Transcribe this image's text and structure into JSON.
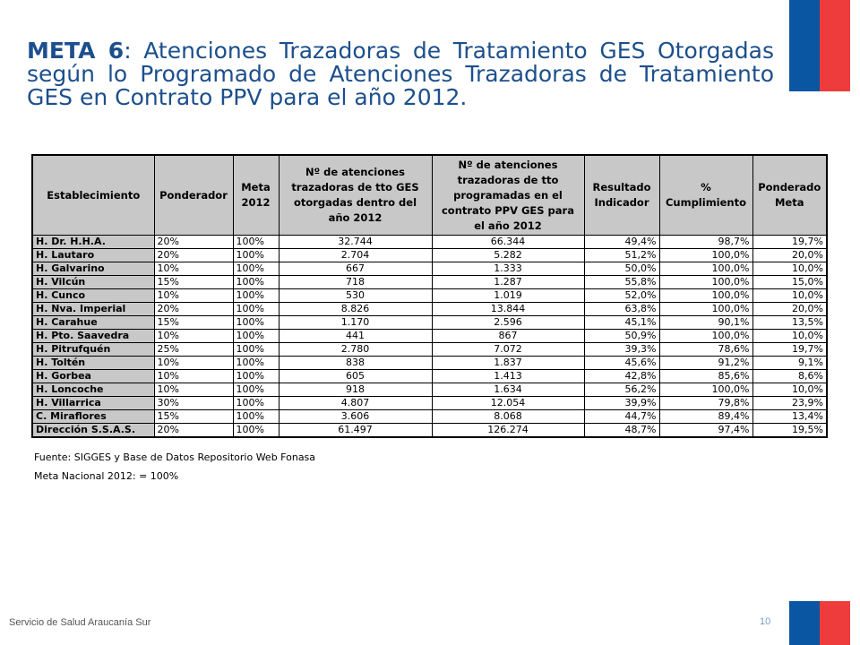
{
  "slide": {
    "title_bold": "META 6",
    "title_rest": ":  Atenciones Trazadoras de Tratamiento GES Otorgadas según lo Programado de Atenciones Trazadoras de Tratamiento GES en Contrato PPV para el año 2012.",
    "footer_org": "Servicio de Salud Araucanía Sur",
    "page_number": "10",
    "colors": {
      "title": "#1c4f8c",
      "flag_blue": "#0b56a3",
      "flag_red": "#ee3c3c",
      "header_bg": "#c8c8c8"
    }
  },
  "table": {
    "headers": [
      "Establecimiento",
      "Ponderador",
      "Meta 2012",
      "Nº de atenciones trazadoras de tto GES otorgadas dentro del año 2012",
      "Nº de atenciones trazadoras de tto programadas en el contrato PPV GES para el año 2012",
      "Resultado Indicador",
      "% Cumplimiento",
      "Ponderado Meta"
    ],
    "rows": [
      [
        "H. Dr. H.H.A.",
        "20%",
        "100%",
        "32.744",
        "66.344",
        "49,4%",
        "98,7%",
        "19,7%"
      ],
      [
        "H. Lautaro",
        "20%",
        "100%",
        "2.704",
        "5.282",
        "51,2%",
        "100,0%",
        "20,0%"
      ],
      [
        "H. Galvarino",
        "10%",
        "100%",
        "667",
        "1.333",
        "50,0%",
        "100,0%",
        "10,0%"
      ],
      [
        "H. Vilcún",
        "15%",
        "100%",
        "718",
        "1.287",
        "55,8%",
        "100,0%",
        "15,0%"
      ],
      [
        "H. Cunco",
        "10%",
        "100%",
        "530",
        "1.019",
        "52,0%",
        "100,0%",
        "10,0%"
      ],
      [
        "H. Nva. Imperial",
        "20%",
        "100%",
        "8.826",
        "13.844",
        "63,8%",
        "100,0%",
        "20,0%"
      ],
      [
        "H. Carahue",
        "15%",
        "100%",
        "1.170",
        "2.596",
        "45,1%",
        "90,1%",
        "13,5%"
      ],
      [
        "H. Pto. Saavedra",
        "10%",
        "100%",
        "441",
        "867",
        "50,9%",
        "100,0%",
        "10,0%"
      ],
      [
        "H. Pitrufquén",
        "25%",
        "100%",
        "2.780",
        "7.072",
        "39,3%",
        "78,6%",
        "19,7%"
      ],
      [
        "H. Toltén",
        "10%",
        "100%",
        "838",
        "1.837",
        "45,6%",
        "91,2%",
        "9,1%"
      ],
      [
        "H. Gorbea",
        "10%",
        "100%",
        "605",
        "1.413",
        "42,8%",
        "85,6%",
        "8,6%"
      ],
      [
        "H. Loncoche",
        "10%",
        "100%",
        "918",
        "1.634",
        "56,2%",
        "100,0%",
        "10,0%"
      ],
      [
        "H. Villarrica",
        "30%",
        "100%",
        "4.807",
        "12.054",
        "39,9%",
        "79,8%",
        "23,9%"
      ],
      [
        "C. Miraflores",
        "15%",
        "100%",
        "3.606",
        "8.068",
        "44,7%",
        "89,4%",
        "13,4%"
      ],
      [
        "Dirección S.S.A.S.",
        "20%",
        "100%",
        "61.497",
        "126.274",
        "48,7%",
        "97,4%",
        "19,5%"
      ]
    ]
  },
  "notes": {
    "source": "Fuente: SIGGES y Base de Datos Repositorio Web Fonasa",
    "national_goal": "Meta Nacional 2012: = 100%"
  }
}
